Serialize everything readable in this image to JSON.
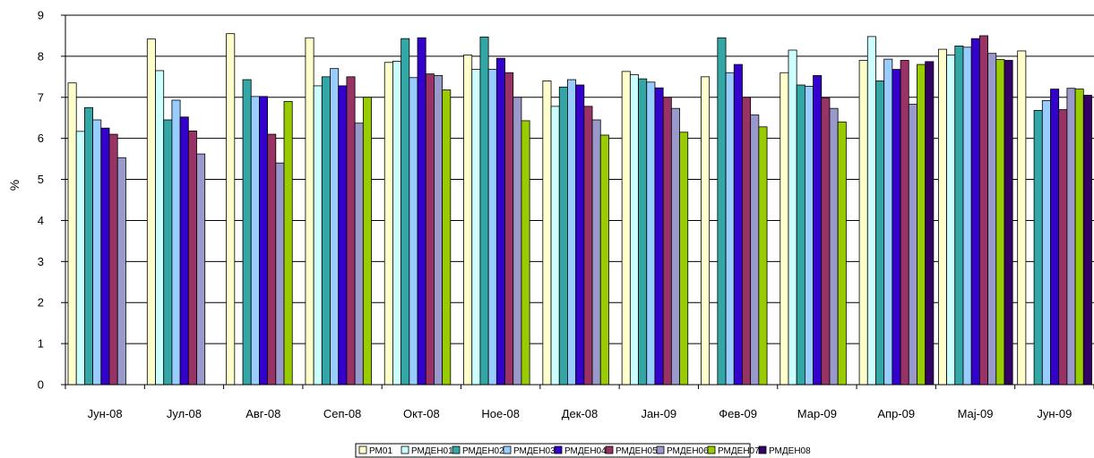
{
  "chart_data": {
    "type": "bar",
    "title": "",
    "xlabel": "",
    "ylabel": "%",
    "ylim": [
      0,
      9
    ],
    "yticks": [
      "0",
      "1",
      "2",
      "3",
      "4",
      "5",
      "6",
      "7",
      "8",
      "9"
    ],
    "grid": true,
    "legend_position": "bottom",
    "categories": [
      "Јун-08",
      "Јул-08",
      "Авг-08",
      "Сеп-08",
      "Окт-08",
      "Ное-08",
      "Дек-08",
      "Јан-09",
      "Фев-09",
      "Мар-09",
      "Апр-09",
      "Мај-09",
      "Јун-09"
    ],
    "series": [
      {
        "name": "РМ01",
        "color": "#FFFFCC",
        "values": [
          7.35,
          8.42,
          8.55,
          8.45,
          7.85,
          8.03,
          7.4,
          7.63,
          7.5,
          7.6,
          7.9,
          8.17,
          8.13
        ]
      },
      {
        "name": "РМДЕН01",
        "color": "#CCFFFF",
        "values": [
          6.17,
          7.65,
          null,
          7.28,
          7.88,
          7.68,
          6.78,
          7.55,
          null,
          8.15,
          8.48,
          8.03,
          null
        ]
      },
      {
        "name": "РМДЕН02",
        "color": "#33A6A6",
        "values": [
          6.75,
          6.45,
          7.43,
          7.5,
          8.43,
          8.47,
          7.25,
          7.45,
          8.45,
          7.3,
          7.4,
          8.25,
          6.68
        ]
      },
      {
        "name": "РМДЕН03",
        "color": "#99CCFF",
        "values": [
          6.45,
          6.93,
          7.02,
          7.7,
          7.48,
          7.68,
          7.43,
          7.37,
          7.6,
          7.27,
          7.93,
          8.22,
          6.92
        ]
      },
      {
        "name": "РМДЕН04",
        "color": "#3300CC",
        "values": [
          6.25,
          6.52,
          7.02,
          7.28,
          8.45,
          7.95,
          7.3,
          7.23,
          7.8,
          7.53,
          7.68,
          8.43,
          7.2
        ]
      },
      {
        "name": "РМДЕН05",
        "color": "#993366",
        "values": [
          6.1,
          6.18,
          6.1,
          7.5,
          7.57,
          7.6,
          6.78,
          7.0,
          7.0,
          6.98,
          7.9,
          8.5,
          6.7
        ]
      },
      {
        "name": "РМДЕН06",
        "color": "#9999CC",
        "values": [
          5.53,
          5.62,
          5.4,
          6.37,
          7.53,
          7.0,
          6.45,
          6.73,
          6.57,
          6.73,
          6.83,
          8.07,
          7.22
        ]
      },
      {
        "name": "РМДЕН07",
        "color": "#99CC00",
        "values": [
          null,
          null,
          6.9,
          7.0,
          7.18,
          6.43,
          6.08,
          6.15,
          6.28,
          6.4,
          7.8,
          7.92,
          7.2
        ]
      },
      {
        "name": "РМДЕН08",
        "color": "#330066",
        "values": [
          null,
          null,
          null,
          null,
          null,
          null,
          null,
          null,
          null,
          null,
          7.87,
          7.9,
          7.05
        ]
      }
    ]
  }
}
